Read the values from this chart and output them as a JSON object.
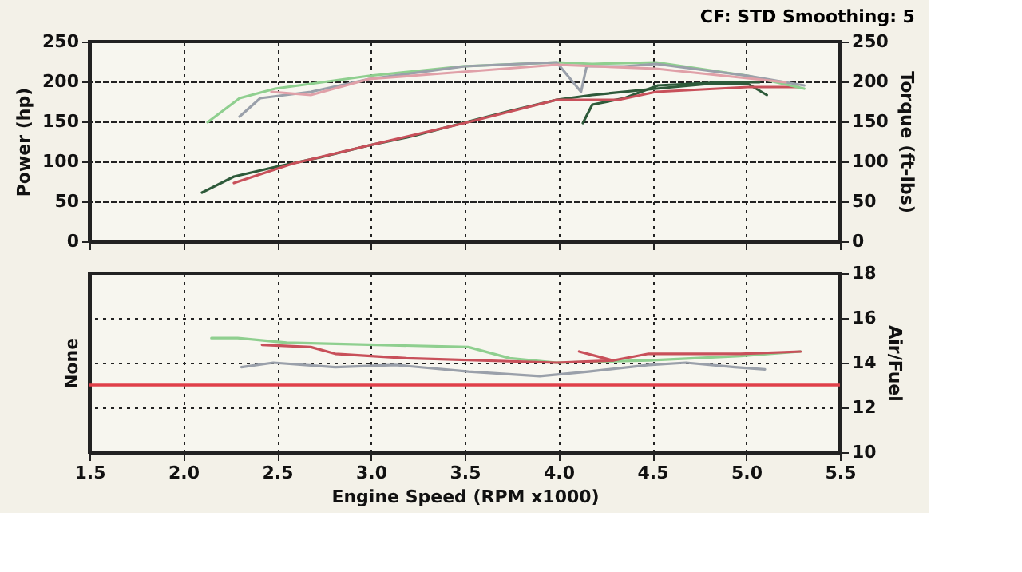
{
  "chart_data": [
    {
      "type": "line",
      "annotations": [
        "CF: STD  Smoothing: 5"
      ],
      "ylabel": "Power (hp)",
      "y2label": "Torque (ft-lbs)",
      "xlim": [
        1.5,
        5.5
      ],
      "xticks": [
        1.5,
        2,
        2.5,
        3,
        3.5,
        4,
        4.5,
        5,
        5.5
      ],
      "ylim": [
        0,
        250
      ],
      "yticks": [
        0,
        50,
        100,
        150,
        200,
        250
      ],
      "y2lim": [
        0,
        250
      ],
      "y2ticks": [
        0,
        50,
        100,
        150,
        200,
        250
      ],
      "tick_labels": "y",
      "grid": true,
      "legend": false,
      "line_style": "solid",
      "series": [
        {
          "color": "#2e5a3a",
          "x": [
            2.1,
            2.27,
            2.49,
            2.73,
            2.99,
            3.23,
            3.49,
            3.74,
            3.99,
            4.18,
            4.52,
            4.8,
            5.01,
            5.11
          ],
          "values": [
            61,
            81,
            93,
            105,
            120,
            132,
            148,
            163,
            177,
            183,
            191,
            197,
            197,
            183
          ]
        },
        {
          "color": "#2e5a3a",
          "x": [
            4.13,
            4.18,
            4.35,
            4.53,
            4.87,
            5.07
          ],
          "values": [
            148,
            171,
            179,
            195,
            199,
            199
          ]
        },
        {
          "color": "#c8505a",
          "x": [
            2.27,
            2.58,
            2.99,
            3.5,
            3.99,
            4.32,
            4.52,
            5.01,
            5.28
          ],
          "values": [
            73,
            97,
            120,
            148,
            177,
            177,
            187,
            193,
            193
          ]
        },
        {
          "color": "#8fcf8f",
          "axis": "y2",
          "x": [
            2.13,
            2.3,
            2.49,
            2.99,
            3.49,
            3.99,
            4.18,
            4.52,
            5.01,
            5.31
          ],
          "values": [
            149,
            179,
            191,
            207,
            219,
            224,
            222,
            224,
            207,
            191
          ]
        },
        {
          "color": "#9aa0aa",
          "axis": "y2",
          "x": [
            2.3,
            2.41,
            2.68,
            2.99,
            3.5,
            3.99,
            4.12,
            4.15,
            4.35,
            4.52,
            5.01,
            5.31
          ],
          "values": [
            156,
            179,
            187,
            203,
            219,
            224,
            187,
            219,
            219,
            222,
            207,
            195
          ]
        },
        {
          "color": "#e0a0a8",
          "axis": "y2",
          "x": [
            2.47,
            2.68,
            2.99,
            3.99,
            4.52,
            5.21
          ],
          "values": [
            187,
            183,
            203,
            221,
            216,
            199
          ]
        }
      ]
    },
    {
      "type": "line",
      "xlabel": "Engine Speed (RPM x1000)",
      "ylabel": "None",
      "y2label": "Air/Fuel",
      "xlim": [
        1.5,
        5.5
      ],
      "xticks": [
        1.5,
        {
          "value": 2,
          "label": "2.0"
        },
        2.5,
        {
          "value": 3,
          "label": "3.0"
        },
        3.5,
        {
          "value": 4,
          "label": "4.0"
        },
        4.5,
        {
          "value": 5,
          "label": "5.0"
        },
        5.5
      ],
      "y2lim": [
        10,
        18
      ],
      "y2ticks": [
        10,
        12,
        14,
        16,
        18
      ],
      "grid": true,
      "legend": false,
      "line_style": "solid",
      "ref_lines": [
        {
          "axis": "y2",
          "value": 13,
          "color": "#e0404a"
        }
      ],
      "series": [
        {
          "color": "#8fcf8f",
          "axis": "y2",
          "x": [
            2.15,
            2.29,
            2.55,
            3.03,
            3.52,
            3.74,
            3.99,
            4.48,
            4.97,
            5.29
          ],
          "values": [
            15.1,
            15.1,
            14.9,
            14.8,
            14.7,
            14.2,
            14.0,
            14.1,
            14.3,
            14.5
          ]
        },
        {
          "color": "#c8505a",
          "axis": "y2",
          "x": [
            2.42,
            2.68,
            2.81,
            3.19,
            3.99,
            4.29,
            4.48,
            4.97,
            5.29
          ],
          "values": [
            14.8,
            14.7,
            14.4,
            14.2,
            14.0,
            14.1,
            14.4,
            14.4,
            14.5
          ]
        },
        {
          "color": "#c8505a",
          "axis": "y2",
          "x": [
            4.11,
            4.29
          ],
          "values": [
            14.5,
            14.1
          ]
        },
        {
          "color": "#9aa0aa",
          "axis": "y2",
          "x": [
            2.31,
            2.48,
            2.81,
            3.13,
            3.52,
            3.9,
            4.16,
            4.48,
            4.68,
            4.94,
            5.1
          ],
          "values": [
            13.8,
            14.0,
            13.8,
            13.9,
            13.6,
            13.4,
            13.6,
            13.9,
            14.0,
            13.8,
            13.7
          ]
        }
      ]
    }
  ]
}
